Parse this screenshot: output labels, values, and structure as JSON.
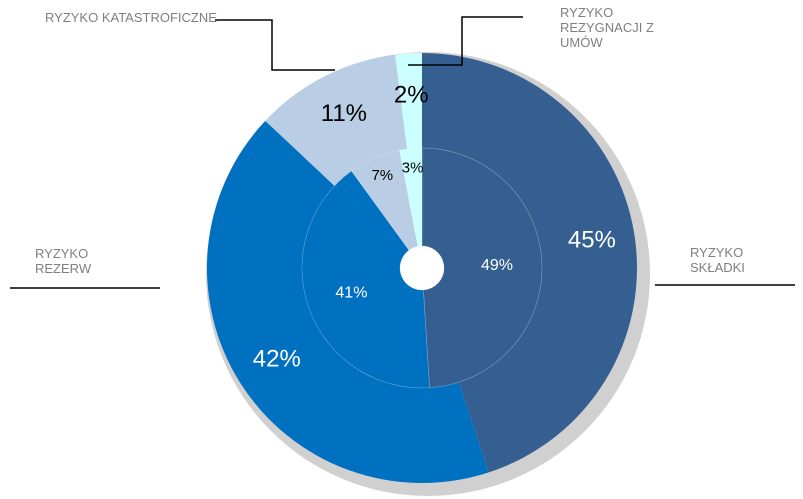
{
  "chart_data": {
    "type": "pie",
    "categories": [
      "RYZYKO SKŁADKI",
      "RYZYKO REZERW",
      "RYZYKO KATASTROFICZNE",
      "RYZYKO REZYGNACJI Z UMÓW"
    ],
    "colors": [
      "#365f91",
      "#0070c0",
      "#b9cde5",
      "#ccffff"
    ],
    "rings": [
      {
        "values": [
          45,
          42,
          11,
          2
        ],
        "value_labels": [
          "45%",
          "42%",
          "11%",
          "2%"
        ]
      },
      {
        "values": [
          49,
          41,
          7,
          3
        ],
        "value_labels": [
          "49%",
          "41%",
          "7%",
          "3%"
        ]
      }
    ]
  }
}
